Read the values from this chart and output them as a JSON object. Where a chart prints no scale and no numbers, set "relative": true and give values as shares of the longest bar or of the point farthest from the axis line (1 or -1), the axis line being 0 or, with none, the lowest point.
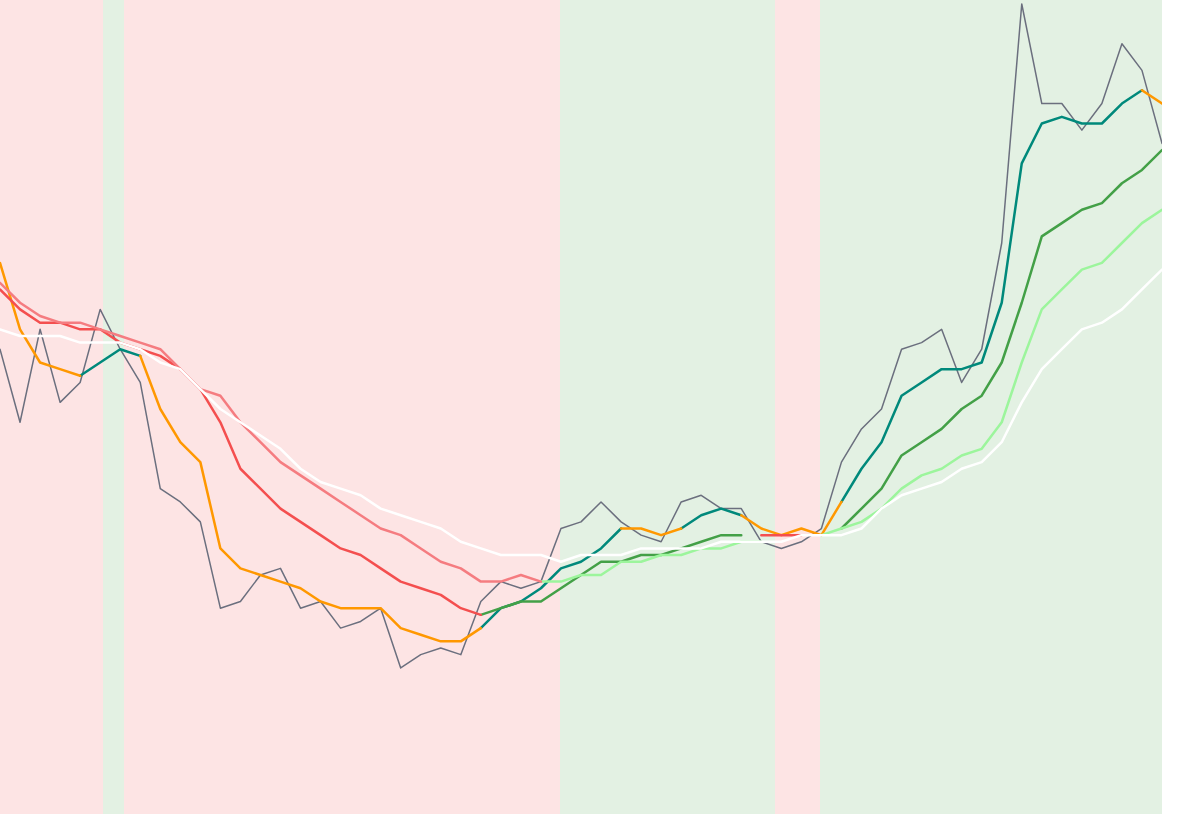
{
  "chart_data": {
    "type": "line",
    "relative": true,
    "tick_labels": false,
    "categories": [
      null,
      null,
      null,
      null,
      null,
      null,
      null,
      null,
      null,
      null,
      null,
      null,
      null,
      null,
      null,
      null,
      null,
      null,
      null,
      null,
      null,
      null,
      null,
      null,
      null,
      null,
      null,
      null,
      null,
      null,
      null,
      null,
      null,
      null,
      null,
      null,
      null,
      null,
      null,
      null,
      null,
      null,
      null,
      null,
      null,
      null,
      null,
      null,
      null,
      null,
      null,
      null,
      null,
      null,
      null,
      null,
      null,
      null,
      null
    ],
    "series": [
      {
        "color": "#6b6f7e",
        "values": [
          0.48,
          0.37,
          0.51,
          0.4,
          0.43,
          0.54,
          0.48,
          0.43,
          0.27,
          0.25,
          0.22,
          0.09,
          0.1,
          0.14,
          0.15,
          0.09,
          0.1,
          0.06,
          0.07,
          0.09,
          0,
          0.02,
          0.03,
          0.02,
          0.1,
          0.13,
          0.12,
          0.13,
          0.21,
          0.22,
          0.25,
          0.22,
          0.2,
          0.19,
          0.25,
          0.26,
          0.24,
          0.24,
          0.19,
          0.18,
          0.19,
          0.21,
          0.31,
          0.36,
          0.39,
          0.48,
          0.49,
          0.51,
          0.43,
          0.48,
          0.64,
          1,
          0.85,
          0.85,
          0.81,
          0.85,
          0.94,
          0.9,
          0.79
        ]
      },
      {
        "color": "#ffffff",
        "values": [
          0.51,
          0.5,
          0.5,
          0.5,
          0.49,
          0.49,
          0.49,
          0.48,
          0.46,
          0.45,
          0.42,
          0.39,
          0.37,
          0.35,
          0.33,
          0.3,
          0.28,
          0.27,
          0.26,
          0.24,
          0.23,
          0.22,
          0.21,
          0.19,
          0.18,
          0.17,
          0.17,
          0.17,
          0.16,
          0.17,
          0.17,
          0.17,
          0.18,
          0.18,
          0.18,
          0.18,
          0.19,
          0.19,
          0.19,
          0.19,
          0.2,
          0.2,
          0.2,
          0.21,
          0.24,
          0.26,
          0.27,
          0.28,
          0.3,
          0.31,
          0.34,
          0.4,
          0.45,
          0.48,
          0.51,
          0.52,
          0.54,
          0.57,
          0.6
        ]
      },
      {
        "color": "#f57c80",
        "values": [
          0.58,
          0.55,
          0.53,
          0.52,
          0.52,
          0.51,
          0.5,
          0.49,
          0.48,
          0.45,
          0.42,
          0.41,
          0.37,
          0.34,
          0.31,
          0.29,
          0.27,
          0.25,
          0.23,
          0.21,
          0.2,
          0.18,
          0.16,
          0.15,
          0.13,
          0.13,
          0.14,
          0.13,
          null,
          null,
          null,
          null,
          null,
          null,
          null,
          null,
          null,
          null,
          null,
          null,
          null,
          null,
          null,
          null,
          null,
          null,
          null,
          null,
          null,
          null,
          null,
          null,
          null,
          null,
          null,
          null,
          null,
          null,
          null
        ]
      },
      {
        "color": "#9cf59c",
        "values": [
          null,
          null,
          null,
          null,
          null,
          null,
          null,
          null,
          null,
          null,
          null,
          null,
          null,
          null,
          null,
          null,
          null,
          null,
          null,
          null,
          null,
          null,
          null,
          null,
          null,
          null,
          null,
          0.13,
          0.13,
          0.14,
          0.14,
          0.16,
          0.16,
          0.17,
          0.17,
          0.18,
          0.18,
          0.19,
          0.19,
          null,
          null,
          0.2,
          0.21,
          0.22,
          0.24,
          0.27,
          0.29,
          0.3,
          0.32,
          0.33,
          0.37,
          0.46,
          0.54,
          0.57,
          0.6,
          0.61,
          0.64,
          0.67,
          0.69
        ]
      },
      {
        "color": "#f44f4f",
        "values": [
          0.57,
          0.54,
          0.52,
          0.52,
          0.51,
          0.51,
          0.49,
          0.48,
          0.47,
          0.45,
          0.42,
          0.37,
          0.3,
          0.27,
          0.24,
          0.22,
          0.2,
          0.18,
          0.17,
          0.15,
          0.13,
          0.12,
          0.11,
          0.09,
          0.08,
          null,
          null,
          null,
          null,
          null,
          null,
          null,
          null,
          null,
          null,
          null,
          null,
          null,
          0.2,
          0.2,
          0.2,
          null,
          null,
          null,
          null,
          null,
          null,
          null,
          null,
          null,
          null,
          null,
          null,
          null,
          null,
          null,
          null,
          null,
          null
        ]
      },
      {
        "color": "#43a047",
        "values": [
          null,
          null,
          null,
          null,
          null,
          null,
          null,
          null,
          null,
          null,
          null,
          null,
          null,
          null,
          null,
          null,
          null,
          null,
          null,
          null,
          null,
          null,
          null,
          null,
          0.08,
          0.09,
          0.1,
          0.1,
          0.12,
          0.14,
          0.16,
          0.16,
          0.17,
          0.17,
          0.18,
          0.19,
          0.2,
          0.2,
          null,
          null,
          null,
          null,
          0.21,
          0.24,
          0.27,
          0.32,
          0.34,
          0.36,
          0.39,
          0.41,
          0.46,
          0.55,
          0.65,
          0.67,
          0.69,
          0.7,
          0.73,
          0.75,
          0.78
        ]
      },
      {
        "color": "#ff9800",
        "values": [
          0.61,
          0.51,
          0.46,
          0.45,
          0.44,
          null,
          null,
          0.47,
          0.39,
          0.34,
          0.31,
          0.18,
          0.15,
          0.14,
          0.13,
          0.12,
          0.1,
          0.09,
          0.09,
          0.09,
          0.06,
          0.05,
          0.04,
          0.04,
          0.06,
          null,
          null,
          null,
          null,
          null,
          null,
          0.21,
          0.21,
          0.2,
          0.21,
          null,
          null,
          0.23,
          0.21,
          0.2,
          0.21,
          0.2,
          0.25,
          null,
          null,
          null,
          null,
          null,
          null,
          null,
          null,
          null,
          null,
          null,
          null,
          null,
          null,
          0.87,
          0.85
        ]
      },
      {
        "color": "#00897b",
        "values": [
          null,
          null,
          null,
          null,
          0.44,
          0.46,
          0.48,
          0.47,
          null,
          null,
          null,
          null,
          null,
          null,
          null,
          null,
          null,
          null,
          null,
          null,
          null,
          null,
          null,
          null,
          0.06,
          0.09,
          0.1,
          0.12,
          0.15,
          0.16,
          0.18,
          0.21,
          null,
          null,
          0.21,
          0.23,
          0.24,
          0.23,
          null,
          null,
          null,
          null,
          0.25,
          0.3,
          0.34,
          0.41,
          0.43,
          0.45,
          0.45,
          0.46,
          0.55,
          0.76,
          0.82,
          0.83,
          0.82,
          0.82,
          0.85,
          0.87,
          null
        ]
      }
    ]
  }
}
